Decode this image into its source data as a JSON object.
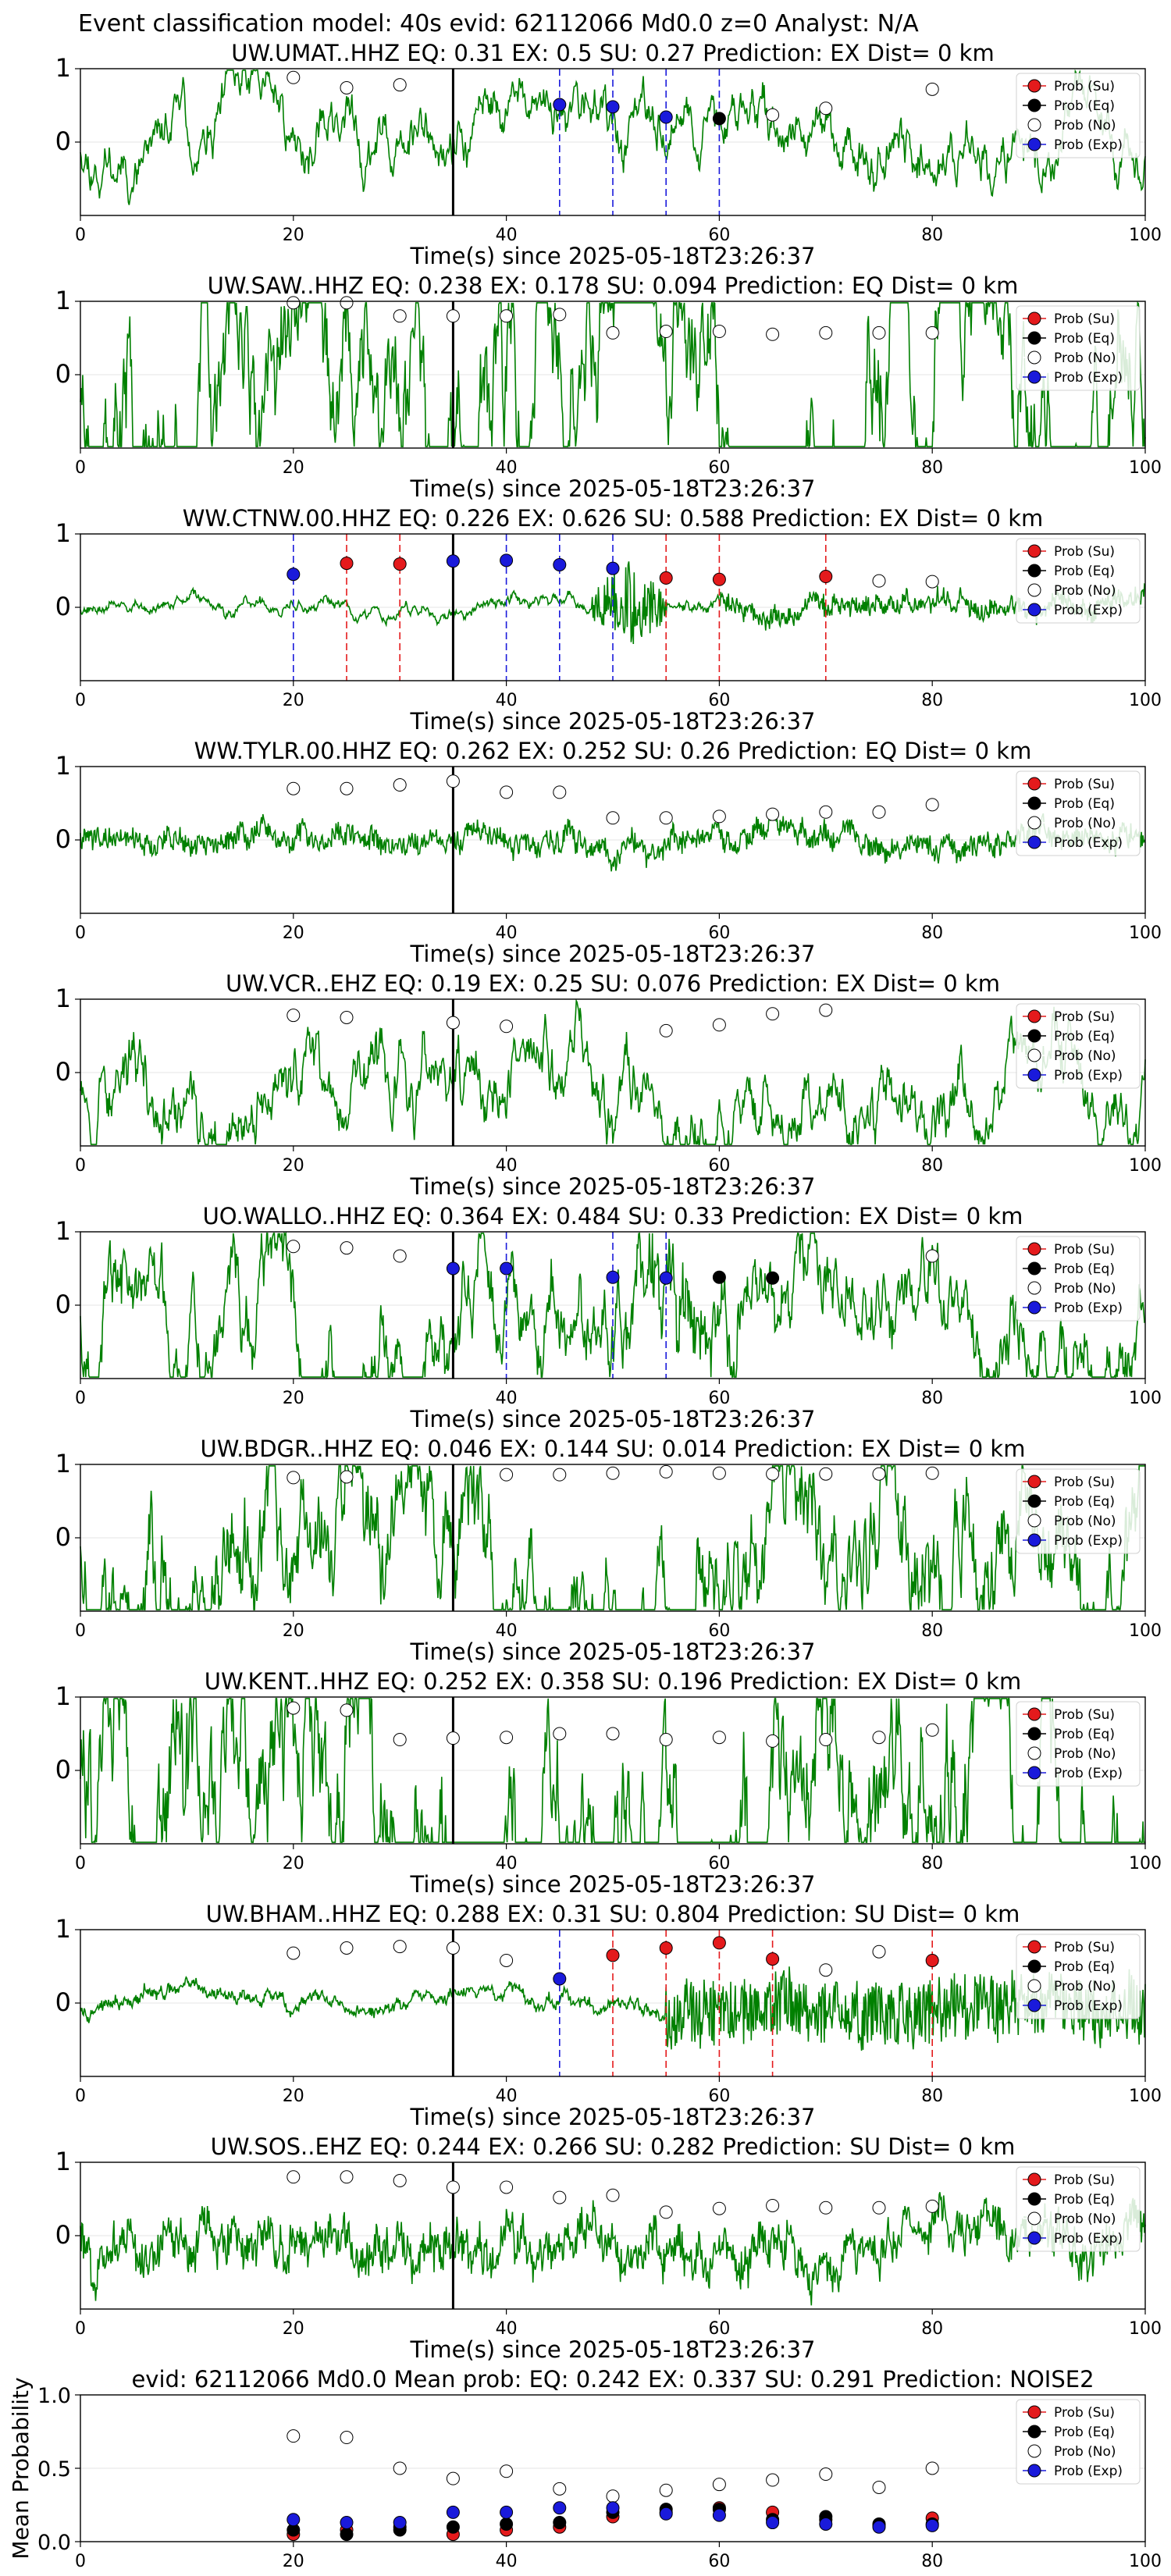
{
  "figure_title": "Event classification model: 40s evid: 62112066 Md0.0 z=0 Analyst: N/A",
  "legend_labels": [
    "Prob (Su)",
    "Prob (Eq)",
    "Prob (No)",
    "Prob (Exp)"
  ],
  "colors": {
    "su": "#e41a1c",
    "eq": "#000000",
    "no": "#ffffff",
    "exp": "#1a1adb",
    "waveform": "#008000",
    "axis": "#000000"
  },
  "chart_data": [
    {
      "type": "line",
      "title": "UW.UMAT..HHZ   EQ: 0.31  EX: 0.5  SU: 0.27   Prediction: EX    Dist= 0 km",
      "xlabel": "Time(s) since 2025-05-18T23:26:37",
      "xlim": [
        0,
        100
      ],
      "ylim": [
        -1,
        1
      ],
      "xticks": [
        0,
        20,
        40,
        60,
        80,
        100
      ],
      "yticks": [
        0,
        1
      ],
      "grid": true,
      "legend": "top-right",
      "arrival_time": 35,
      "waveform": {
        "seed": 11,
        "lf": 0.16,
        "hf": 0.08,
        "drift": 0.05
      },
      "probs": {
        "no": [
          [
            20,
            0.88
          ],
          [
            25,
            0.74
          ],
          [
            30,
            0.78
          ],
          [
            65,
            0.37
          ],
          [
            70,
            0.46
          ],
          [
            80,
            0.72
          ]
        ],
        "su": [],
        "eq": [
          [
            60,
            0.32
          ]
        ],
        "exp": [
          [
            45,
            0.51
          ],
          [
            50,
            0.48
          ],
          [
            55,
            0.34
          ]
        ]
      },
      "vlines": {
        "exp": [
          45,
          50,
          55,
          60
        ],
        "su": []
      }
    },
    {
      "type": "line",
      "title": "UW.SAW..HHZ   EQ: 0.238  EX: 0.178  SU: 0.094   Prediction: EQ    Dist= 0 km",
      "xlabel": "Time(s) since 2025-05-18T23:26:37",
      "xlim": [
        0,
        100
      ],
      "ylim": [
        -1,
        1
      ],
      "xticks": [
        0,
        20,
        40,
        60,
        80,
        100
      ],
      "yticks": [
        0,
        1
      ],
      "grid": true,
      "legend": "top-right",
      "arrival_time": 35,
      "waveform": {
        "seed": 23,
        "lf": 0.55,
        "hf": 0.12,
        "drift": 0.05
      },
      "probs": {
        "no": [
          [
            20,
            0.98
          ],
          [
            25,
            0.98
          ],
          [
            30,
            0.8
          ],
          [
            35,
            0.8
          ],
          [
            40,
            0.8
          ],
          [
            45,
            0.82
          ],
          [
            50,
            0.57
          ],
          [
            55,
            0.59
          ],
          [
            60,
            0.59
          ],
          [
            65,
            0.55
          ],
          [
            70,
            0.57
          ],
          [
            75,
            0.57
          ],
          [
            80,
            0.57
          ]
        ],
        "su": [],
        "eq": [],
        "exp": []
      },
      "vlines": {
        "exp": [],
        "su": []
      }
    },
    {
      "type": "line",
      "title": "WW.CTNW.00.HHZ   EQ: 0.226  EX: 0.626  SU: 0.588   Prediction: EX    Dist= 0 km",
      "xlabel": "Time(s) since 2025-05-18T23:26:37",
      "xlim": [
        0,
        100
      ],
      "ylim": [
        -1,
        1
      ],
      "xticks": [
        0,
        20,
        40,
        60,
        80,
        100
      ],
      "yticks": [
        0,
        1
      ],
      "grid": true,
      "legend": "top-right",
      "arrival_time": 35,
      "waveform": {
        "seed": 37,
        "lf": 0.04,
        "hf": 0.04,
        "drift": 0.02,
        "burst": [
          48,
          55,
          0.55
        ],
        "late": [
          60,
          100,
          0.12
        ]
      },
      "probs": {
        "no": [
          [
            75,
            0.36
          ],
          [
            80,
            0.35
          ]
        ],
        "su": [
          [
            25,
            0.6
          ],
          [
            30,
            0.59
          ],
          [
            55,
            0.4
          ],
          [
            60,
            0.38
          ],
          [
            70,
            0.42
          ]
        ],
        "eq": [],
        "exp": [
          [
            20,
            0.45
          ],
          [
            35,
            0.63
          ],
          [
            40,
            0.64
          ],
          [
            45,
            0.58
          ],
          [
            50,
            0.53
          ]
        ]
      },
      "vlines": {
        "exp": [
          20,
          35,
          40,
          45,
          50
        ],
        "su": [
          25,
          30,
          55,
          60,
          70
        ]
      }
    },
    {
      "type": "line",
      "title": "WW.TYLR.00.HHZ   EQ: 0.262  EX: 0.252  SU: 0.26   Prediction: EQ    Dist= 0 km",
      "xlabel": "Time(s) since 2025-05-18T23:26:37",
      "xlim": [
        0,
        100
      ],
      "ylim": [
        -1,
        1
      ],
      "xticks": [
        0,
        20,
        40,
        60,
        80,
        100
      ],
      "yticks": [
        0,
        1
      ],
      "grid": true,
      "legend": "top-right",
      "arrival_time": 35,
      "waveform": {
        "seed": 41,
        "lf": 0.05,
        "hf": 0.25,
        "drift": 0.03
      },
      "probs": {
        "no": [
          [
            20,
            0.7
          ],
          [
            25,
            0.7
          ],
          [
            30,
            0.75
          ],
          [
            35,
            0.8
          ],
          [
            40,
            0.65
          ],
          [
            45,
            0.65
          ],
          [
            50,
            0.3
          ],
          [
            55,
            0.3
          ],
          [
            60,
            0.32
          ],
          [
            65,
            0.35
          ],
          [
            70,
            0.38
          ],
          [
            75,
            0.38
          ],
          [
            80,
            0.48
          ]
        ],
        "su": [],
        "eq": [],
        "exp": []
      },
      "vlines": {
        "exp": [],
        "su": []
      }
    },
    {
      "type": "line",
      "title": "UW.VCR..EHZ   EQ: 0.19  EX: 0.25  SU: 0.076   Prediction: EX    Dist= 0 km",
      "xlabel": "Time(s) since 2025-05-18T23:26:37",
      "xlim": [
        0,
        100
      ],
      "ylim": [
        -1,
        1
      ],
      "xticks": [
        0,
        20,
        40,
        60,
        80,
        100
      ],
      "yticks": [
        0,
        1
      ],
      "grid": true,
      "legend": "top-right",
      "arrival_time": 35,
      "waveform": {
        "seed": 53,
        "lf": 0.22,
        "hf": 0.1,
        "drift": 0.04
      },
      "probs": {
        "no": [
          [
            20,
            0.78
          ],
          [
            25,
            0.75
          ],
          [
            35,
            0.68
          ],
          [
            40,
            0.63
          ],
          [
            55,
            0.57
          ],
          [
            60,
            0.65
          ],
          [
            65,
            0.8
          ],
          [
            70,
            0.85
          ]
        ],
        "su": [],
        "eq": [],
        "exp": []
      },
      "vlines": {
        "exp": [],
        "su": []
      }
    },
    {
      "type": "line",
      "title": "UO.WALLO..HHZ   EQ: 0.364  EX: 0.484  SU: 0.33   Prediction: EX    Dist= 0 km",
      "xlabel": "Time(s) since 2025-05-18T23:26:37",
      "xlim": [
        0,
        100
      ],
      "ylim": [
        -1,
        1
      ],
      "xticks": [
        0,
        20,
        40,
        60,
        80,
        100
      ],
      "yticks": [
        0,
        1
      ],
      "grid": true,
      "legend": "top-right",
      "arrival_time": 35,
      "waveform": {
        "seed": 67,
        "lf": 0.28,
        "hf": 0.2,
        "drift": 0.05,
        "burst": [
          50,
          62,
          0.35
        ]
      },
      "probs": {
        "no": [
          [
            20,
            0.8
          ],
          [
            25,
            0.78
          ],
          [
            30,
            0.67
          ],
          [
            80,
            0.67
          ]
        ],
        "su": [],
        "eq": [
          [
            60,
            0.38
          ],
          [
            65,
            0.37
          ]
        ],
        "exp": [
          [
            35,
            0.5
          ],
          [
            40,
            0.5
          ],
          [
            50,
            0.38
          ],
          [
            55,
            0.37
          ]
        ]
      },
      "vlines": {
        "exp": [
          40,
          50,
          55
        ],
        "su": []
      }
    },
    {
      "type": "line",
      "title": "UW.BDGR..HHZ   EQ: 0.046  EX: 0.144  SU: 0.014   Prediction: EX    Dist= 0 km",
      "xlabel": "Time(s) since 2025-05-18T23:26:37",
      "xlim": [
        0,
        100
      ],
      "ylim": [
        -1,
        1
      ],
      "xticks": [
        0,
        20,
        40,
        60,
        80,
        100
      ],
      "yticks": [
        0,
        1
      ],
      "grid": true,
      "legend": "top-right",
      "arrival_time": 35,
      "waveform": {
        "seed": 79,
        "lf": 0.42,
        "hf": 0.3,
        "drift": 0.05
      },
      "probs": {
        "no": [
          [
            20,
            0.82
          ],
          [
            25,
            0.83
          ],
          [
            40,
            0.86
          ],
          [
            45,
            0.86
          ],
          [
            50,
            0.88
          ],
          [
            55,
            0.9
          ],
          [
            60,
            0.88
          ],
          [
            65,
            0.87
          ],
          [
            70,
            0.87
          ],
          [
            75,
            0.87
          ],
          [
            80,
            0.88
          ]
        ],
        "su": [],
        "eq": [],
        "exp": []
      },
      "vlines": {
        "exp": [],
        "su": []
      }
    },
    {
      "type": "line",
      "title": "UW.KENT..HHZ   EQ: 0.252  EX: 0.358  SU: 0.196   Prediction: EX    Dist= 0 km",
      "xlabel": "Time(s) since 2025-05-18T23:26:37",
      "xlim": [
        0,
        100
      ],
      "ylim": [
        -1,
        1
      ],
      "xticks": [
        0,
        20,
        40,
        60,
        80,
        100
      ],
      "yticks": [
        0,
        1
      ],
      "grid": true,
      "legend": "top-right",
      "arrival_time": 35,
      "waveform": {
        "seed": 83,
        "lf": 0.62,
        "hf": 0.06,
        "drift": 0.04,
        "osc": 0.45
      },
      "probs": {
        "no": [
          [
            20,
            0.85
          ],
          [
            25,
            0.82
          ],
          [
            30,
            0.42
          ],
          [
            35,
            0.44
          ],
          [
            40,
            0.45
          ],
          [
            45,
            0.5
          ],
          [
            50,
            0.5
          ],
          [
            55,
            0.42
          ],
          [
            60,
            0.45
          ],
          [
            65,
            0.4
          ],
          [
            70,
            0.42
          ],
          [
            75,
            0.45
          ],
          [
            80,
            0.55
          ]
        ],
        "su": [],
        "eq": [],
        "exp": []
      },
      "vlines": {
        "exp": [],
        "su": []
      }
    },
    {
      "type": "line",
      "title": "UW.BHAM..HHZ   EQ: 0.288  EX: 0.31  SU: 0.804   Prediction: SU    Dist= 0 km",
      "xlabel": "Time(s) since 2025-05-18T23:26:37",
      "xlim": [
        0,
        100
      ],
      "ylim": [
        -1,
        1
      ],
      "xticks": [
        0,
        20,
        40,
        60,
        80,
        100
      ],
      "yticks": [
        0,
        1
      ],
      "grid": true,
      "legend": "top-right",
      "arrival_time": 35,
      "waveform": {
        "seed": 97,
        "lf": 0.04,
        "hf": 0.1,
        "drift": 0.02,
        "late": [
          55,
          100,
          0.45
        ]
      },
      "probs": {
        "no": [
          [
            20,
            0.68
          ],
          [
            25,
            0.75
          ],
          [
            30,
            0.77
          ],
          [
            35,
            0.75
          ],
          [
            40,
            0.58
          ],
          [
            70,
            0.45
          ],
          [
            75,
            0.7
          ]
        ],
        "su": [
          [
            50,
            0.65
          ],
          [
            55,
            0.75
          ],
          [
            60,
            0.82
          ],
          [
            65,
            0.6
          ],
          [
            80,
            0.58
          ]
        ],
        "eq": [],
        "exp": [
          [
            45,
            0.33
          ]
        ]
      },
      "vlines": {
        "exp": [
          45
        ],
        "su": [
          50,
          55,
          60,
          65,
          80
        ]
      }
    },
    {
      "type": "line",
      "title": "UW.SOS..EHZ   EQ: 0.244  EX: 0.266  SU: 0.282   Prediction: SU    Dist= 0 km",
      "xlabel": "Time(s) since 2025-05-18T23:26:37",
      "xlim": [
        0,
        100
      ],
      "ylim": [
        -1,
        1
      ],
      "xticks": [
        0,
        20,
        40,
        60,
        80,
        100
      ],
      "yticks": [
        0,
        1
      ],
      "grid": true,
      "legend": "top-right",
      "arrival_time": 35,
      "waveform": {
        "seed": 101,
        "lf": 0.12,
        "hf": 0.42,
        "drift": 0.03
      },
      "probs": {
        "no": [
          [
            20,
            0.8
          ],
          [
            25,
            0.8
          ],
          [
            30,
            0.75
          ],
          [
            35,
            0.66
          ],
          [
            40,
            0.66
          ],
          [
            45,
            0.52
          ],
          [
            50,
            0.55
          ],
          [
            55,
            0.32
          ],
          [
            60,
            0.37
          ],
          [
            65,
            0.41
          ],
          [
            70,
            0.38
          ],
          [
            75,
            0.38
          ],
          [
            80,
            0.4
          ]
        ],
        "su": [],
        "eq": [],
        "exp": []
      },
      "vlines": {
        "exp": [],
        "su": []
      }
    },
    {
      "type": "scatter",
      "title": "evid: 62112066  Md0.0   Mean prob:   EQ: 0.242  EX: 0.337  SU: 0.291   Prediction: NOISE2",
      "ylabel": "Mean Probability",
      "xlim": [
        0,
        100
      ],
      "ylim": [
        0,
        1
      ],
      "xticks": [
        0,
        20,
        40,
        60,
        80,
        100
      ],
      "yticks": [
        0.0,
        0.5,
        1.0
      ],
      "grid": true,
      "legend": "top-right",
      "probs": {
        "su": [
          [
            20,
            0.05
          ],
          [
            25,
            0.08
          ],
          [
            30,
            0.1
          ],
          [
            35,
            0.05
          ],
          [
            40,
            0.08
          ],
          [
            45,
            0.1
          ],
          [
            50,
            0.17
          ],
          [
            55,
            0.2
          ],
          [
            60,
            0.23
          ],
          [
            65,
            0.2
          ],
          [
            70,
            0.15
          ],
          [
            75,
            0.11
          ],
          [
            80,
            0.16
          ]
        ],
        "eq": [
          [
            20,
            0.08
          ],
          [
            25,
            0.05
          ],
          [
            30,
            0.08
          ],
          [
            35,
            0.1
          ],
          [
            40,
            0.12
          ],
          [
            45,
            0.13
          ],
          [
            50,
            0.2
          ],
          [
            55,
            0.22
          ],
          [
            60,
            0.22
          ],
          [
            65,
            0.15
          ],
          [
            70,
            0.17
          ],
          [
            75,
            0.12
          ],
          [
            80,
            0.12
          ]
        ],
        "no": [
          [
            20,
            0.72
          ],
          [
            25,
            0.71
          ],
          [
            30,
            0.5
          ],
          [
            35,
            0.43
          ],
          [
            40,
            0.48
          ],
          [
            45,
            0.36
          ],
          [
            50,
            0.31
          ],
          [
            55,
            0.35
          ],
          [
            60,
            0.39
          ],
          [
            65,
            0.42
          ],
          [
            70,
            0.46
          ],
          [
            75,
            0.37
          ],
          [
            80,
            0.5
          ]
        ],
        "exp": [
          [
            20,
            0.15
          ],
          [
            25,
            0.13
          ],
          [
            30,
            0.13
          ],
          [
            35,
            0.2
          ],
          [
            40,
            0.2
          ],
          [
            45,
            0.23
          ],
          [
            50,
            0.23
          ],
          [
            55,
            0.19
          ],
          [
            60,
            0.18
          ],
          [
            65,
            0.13
          ],
          [
            70,
            0.12
          ],
          [
            75,
            0.1
          ],
          [
            80,
            0.11
          ]
        ]
      }
    }
  ]
}
